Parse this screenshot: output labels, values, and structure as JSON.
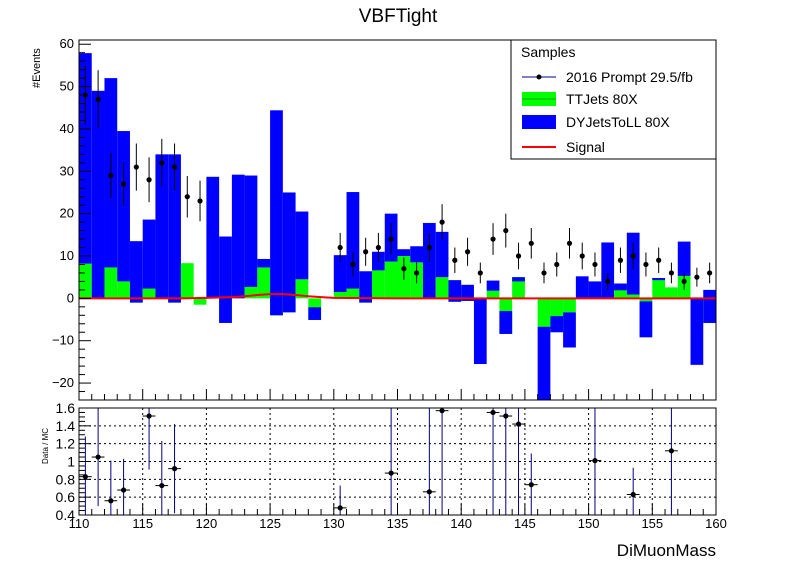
{
  "colors": {
    "dy": "#0000ff",
    "tt": "#00ff00",
    "tt_line": "#00aa00",
    "signal": "#ff0000",
    "data": "#000000",
    "data_err": "#000080",
    "frame": "#000000",
    "grid": "#000000"
  },
  "chart_data": [
    {
      "type": "bar",
      "stacked": true,
      "title": "VBFTight",
      "xlabel": "DiMuonMass",
      "ylabel": "#Events",
      "xlim": [
        110,
        160
      ],
      "ylim": [
        -24,
        61
      ],
      "yticks": [
        -20,
        -10,
        0,
        10,
        20,
        30,
        40,
        50,
        60
      ],
      "grid": false,
      "bin_width": 1,
      "bin_low_edges": [
        110,
        111,
        112,
        113,
        114,
        115,
        116,
        117,
        118,
        119,
        120,
        121,
        122,
        123,
        124,
        125,
        126,
        127,
        128,
        129,
        130,
        131,
        132,
        133,
        134,
        135,
        136,
        137,
        138,
        139,
        140,
        141,
        142,
        143,
        144,
        145,
        146,
        147,
        148,
        149,
        150,
        151,
        152,
        153,
        154,
        155,
        156,
        157,
        158,
        159
      ],
      "legend": {
        "title": "Samples",
        "position": "top-right",
        "entries": [
          "2016 Prompt 29.5/fb",
          "TTJets 80X",
          "DYJetsToLL 80X",
          "Signal"
        ]
      },
      "series": [
        {
          "name": "TTJets 80X",
          "kind": "filled-stack",
          "values": [
            8.2,
            0,
            7.3,
            4,
            -1,
            2.3,
            0,
            -1,
            8.3,
            -1.5,
            0,
            -5.8,
            0,
            2.7,
            7.3,
            -4,
            -3.3,
            4.5,
            -5.1,
            0,
            1.5,
            2.3,
            -1,
            6.6,
            8.7,
            10,
            8.5,
            0,
            5,
            -0.8,
            -0.6,
            0,
            1.8,
            -8.4,
            5,
            0,
            -6.7,
            -8,
            -3.3,
            0,
            0,
            0,
            3.5,
            0.9,
            -0.7,
            4.8,
            2.6,
            5.3,
            0,
            -5.8
          ]
        },
        {
          "name": "DYJetsToLL 80X",
          "kind": "filled-stack",
          "values": [
            49.7,
            49,
            44.7,
            35.5,
            14.5,
            16.3,
            34,
            35,
            0,
            0,
            28.7,
            20.4,
            29.2,
            26.3,
            2,
            48.4,
            28.3,
            16,
            3,
            0,
            8.7,
            22.8,
            7.4,
            4.4,
            11.3,
            1.6,
            3.8,
            17.8,
            10.7,
            5.1,
            3.8,
            -15.5,
            2.4,
            5.4,
            -1,
            0,
            -17.5,
            3.8,
            -8.3,
            5.2,
            4,
            13.2,
            -1.6,
            14.6,
            -8.5,
            -0.5,
            0,
            8.1,
            -15.7,
            7.8
          ]
        },
        {
          "name": "2016 Prompt 29.5/fb",
          "kind": "points",
          "x": [
            110.5,
            111.5,
            112.5,
            113.5,
            114.5,
            115.5,
            116.5,
            117.5,
            118.5,
            119.5,
            130.5,
            131.5,
            132.5,
            133.5,
            134.5,
            135.5,
            136.5,
            137.5,
            138.5,
            139.5,
            140.5,
            141.5,
            142.5,
            143.5,
            144.5,
            145.5,
            146.5,
            147.5,
            148.5,
            149.5,
            150.5,
            151.5,
            152.5,
            153.5,
            154.5,
            155.5,
            156.5,
            157.5,
            158.5,
            159.5
          ],
          "y": [
            48,
            47,
            29,
            27,
            31,
            28,
            32,
            31,
            24,
            23,
            12,
            8,
            11,
            12,
            14,
            7,
            6,
            12,
            18,
            9,
            11,
            6,
            14,
            16,
            10,
            13,
            6,
            8,
            13,
            10,
            8,
            4,
            9,
            10,
            8,
            9,
            6,
            4,
            5,
            6
          ]
        },
        {
          "name": "Signal",
          "kind": "line",
          "x": [
            110,
            118,
            120,
            122,
            123,
            124,
            125,
            126,
            127,
            128,
            129,
            130,
            135,
            140,
            150,
            160
          ],
          "y": [
            0,
            0,
            0.1,
            0.3,
            0.5,
            0.8,
            1.0,
            1.0,
            0.8,
            0.5,
            0.3,
            0.1,
            0,
            0,
            0,
            0
          ]
        }
      ]
    },
    {
      "type": "scatter",
      "title": "",
      "xlabel": "",
      "ylabel": "Data / MC",
      "xlim": [
        110,
        160
      ],
      "ylim": [
        0.4,
        1.6
      ],
      "yticks": [
        0.4,
        0.6,
        0.8,
        1,
        1.2,
        1.4,
        1.6
      ],
      "ytick_labels": [
        "0.4",
        "0.6",
        "0.8",
        "1",
        "1.2",
        "1.4",
        "1.6"
      ],
      "xticks": [
        110,
        115,
        120,
        125,
        130,
        135,
        140,
        145,
        150,
        155,
        160
      ],
      "grid": true,
      "series": [
        {
          "name": "",
          "x": [
            110.5,
            111.5,
            112.5,
            113.5,
            115.5,
            116.5,
            117.5,
            130.5,
            134.5,
            137.5,
            138.5,
            142.5,
            143.5,
            144.5,
            145.5,
            150.5,
            153.5,
            156.5
          ],
          "y": [
            0.83,
            1.05,
            0.56,
            0.68,
            1.51,
            0.73,
            0.92,
            0.48,
            0.87,
            0.66,
            1.57,
            1.55,
            1.51,
            1.42,
            0.74,
            1.01,
            0.63,
            1.12
          ],
          "err": [
            0.45,
            0.55,
            0.45,
            0.35,
            0.6,
            0.5,
            0.5,
            0.25,
            1.5,
            1.5,
            1.5,
            1.5,
            1.5,
            1.5,
            0.35,
            1.5,
            0.3,
            1.5
          ]
        }
      ]
    }
  ]
}
